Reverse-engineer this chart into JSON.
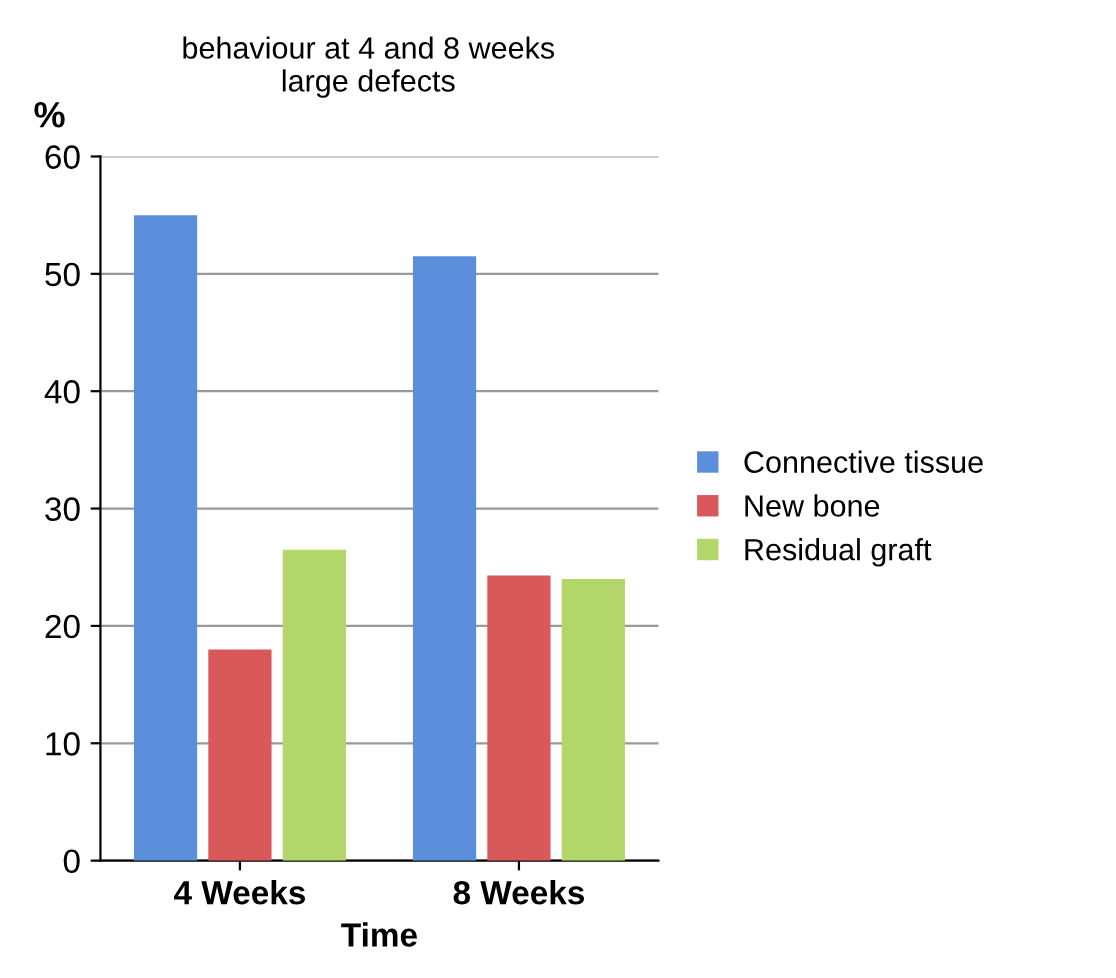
{
  "chart_data": {
    "type": "bar",
    "title": "behaviour at 4 and 8 weeks\nlarge defects",
    "ylabel": "%",
    "xlabel": "Time",
    "categories": [
      "4 Weeks",
      "8 Weeks"
    ],
    "series": [
      {
        "name": "Connective tissue",
        "color": "#5b8fdb",
        "values": [
          55,
          51.5
        ]
      },
      {
        "name": "New bone",
        "color": "#d9585a",
        "values": [
          18,
          24.3
        ]
      },
      {
        "name": "Residual graft",
        "color": "#b3d66a",
        "values": [
          26.5,
          24
        ]
      }
    ],
    "ylim": [
      0,
      60
    ],
    "yticks": [
      0,
      10,
      20,
      30,
      40,
      50,
      60
    ],
    "grid": "y",
    "legend": "right"
  }
}
